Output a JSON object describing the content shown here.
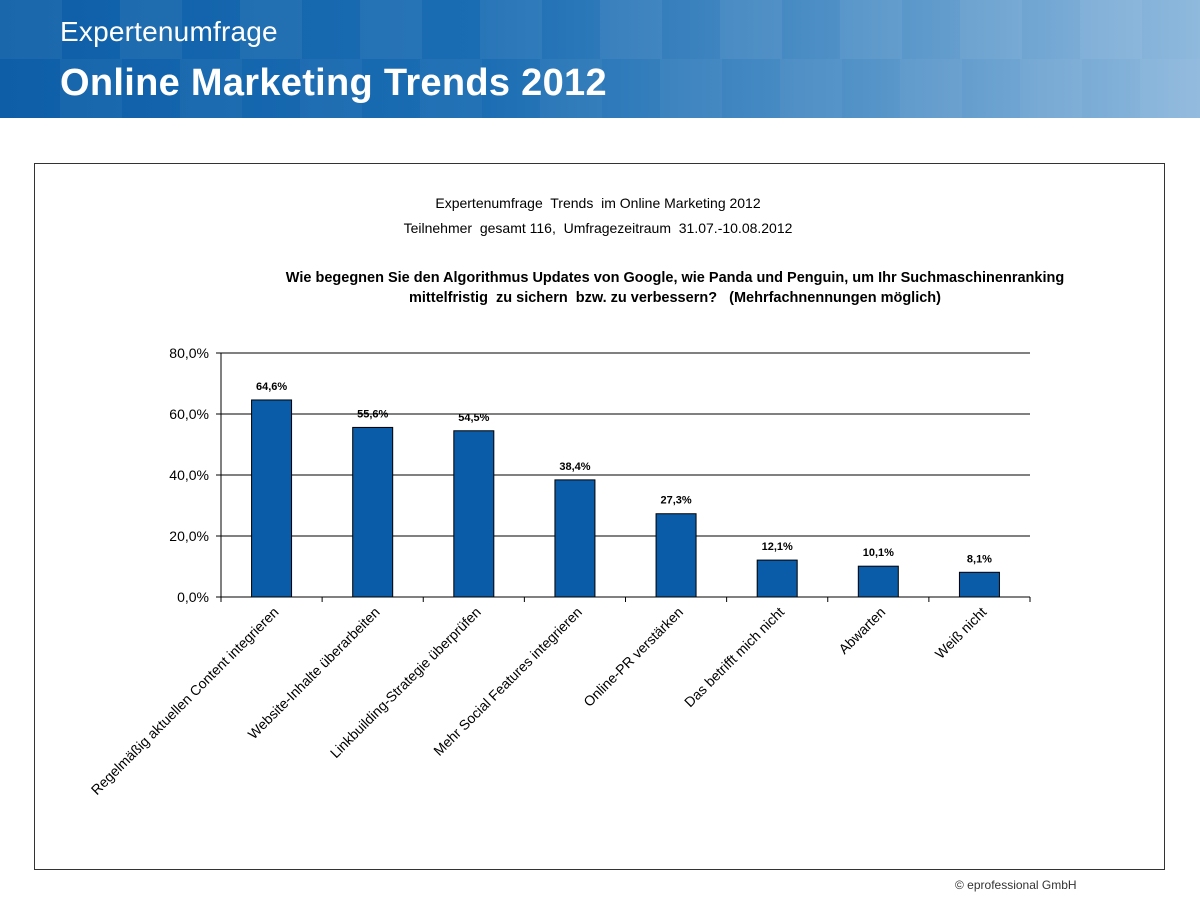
{
  "header": {
    "subtitle": "Expertenumfrage",
    "title": "Online Marketing Trends 2012"
  },
  "colors": {
    "bar": "#0a5ba8",
    "banner": "#0d5ea7"
  },
  "chart_data": {
    "type": "bar",
    "title_line1": "Expertenumfrage  Trends  im Online Marketing 2012",
    "title_line2": "Teilnehmer  gesamt 116,  Umfragezeitraum  31.07.-10.08.2012",
    "question_line1": "Wie begegnen Sie den Algorithmus Updates von Google, wie Panda und Penguin, um Ihr Suchmaschinenranking",
    "question_line2": "mittelfristig  zu sichern  bzw. zu verbessern?   (Mehrfachnennungen möglich)",
    "categories": [
      "Regelmäßig aktuellen Content integrieren",
      "Website-Inhalte überarbeiten",
      "Linkbuilding-Strategie überprüfen",
      "Mehr Social Features integrieren",
      "Online-PR verstärken",
      "Das betrifft mich nicht",
      "Abwarten",
      "Weiß nicht"
    ],
    "values": [
      64.6,
      55.6,
      54.5,
      38.4,
      27.3,
      12.1,
      10.1,
      8.1
    ],
    "value_labels": [
      "64,6%",
      "55,6%",
      "54,5%",
      "38,4%",
      "27,3%",
      "12,1%",
      "10,1%",
      "8,1%"
    ],
    "ylim": [
      0,
      80
    ],
    "yticks": [
      0,
      20,
      40,
      60,
      80
    ],
    "ytick_labels": [
      "0,0%",
      "20,0%",
      "40,0%",
      "60,0%",
      "80,0%"
    ],
    "grid": true,
    "xlabel": "",
    "ylabel": ""
  },
  "footer": {
    "copyright": "© eprofessional GmbH"
  }
}
